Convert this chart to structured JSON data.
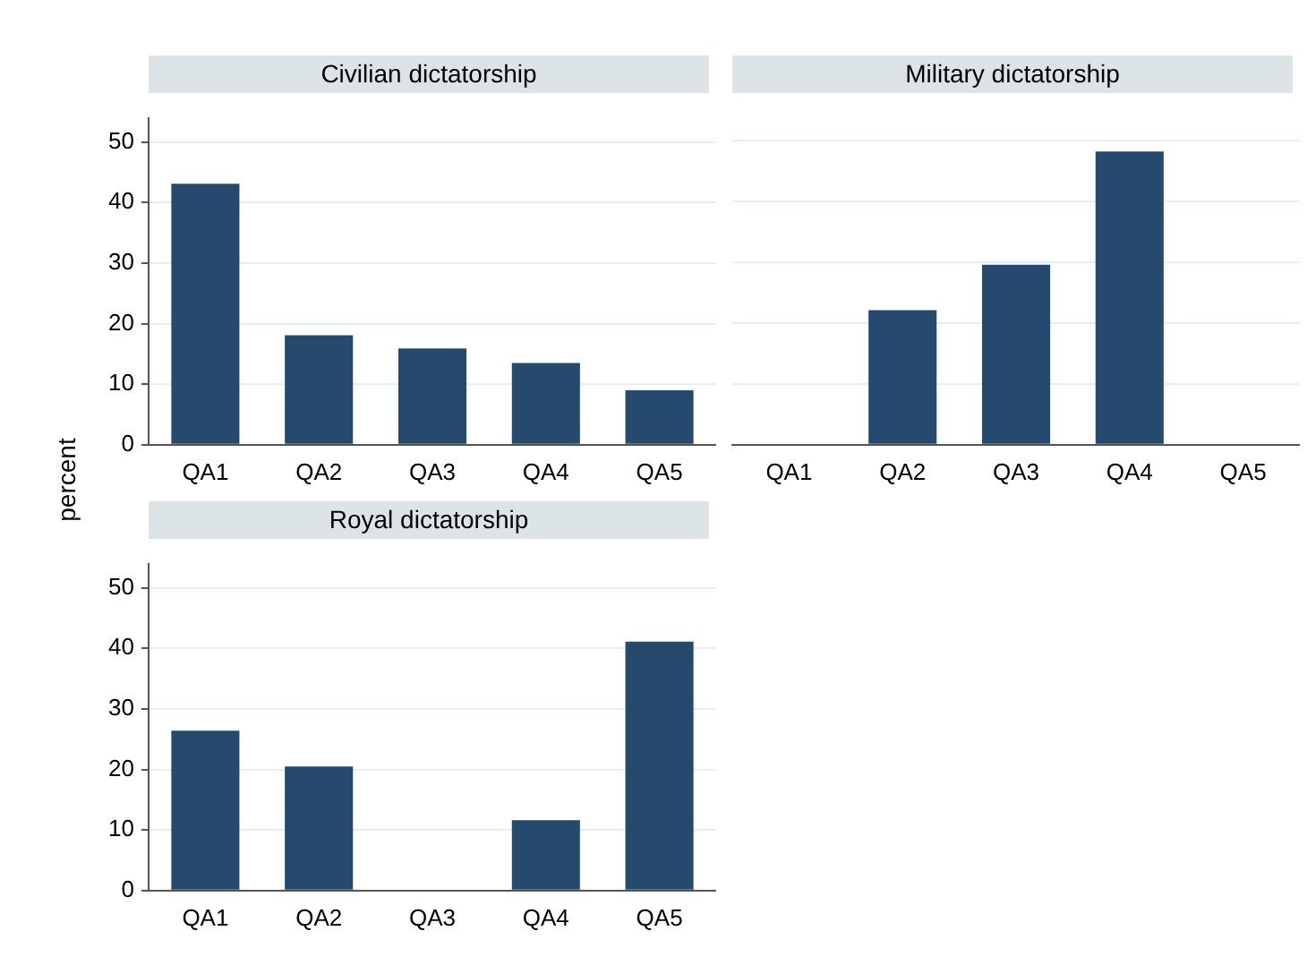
{
  "chart_data": [
    {
      "type": "bar",
      "title": "Civilian dictatorship",
      "ylabel": "percent",
      "categories": [
        "QA1",
        "QA2",
        "QA3",
        "QA4",
        "QA5"
      ],
      "values": [
        43.1,
        18.1,
        15.9,
        13.5,
        9.0
      ],
      "color": "#264a6e",
      "ylim": [
        0,
        54
      ],
      "yticks": [
        0,
        10,
        20,
        30,
        40,
        50
      ],
      "grid": "y"
    },
    {
      "type": "bar",
      "title": "Military dictatorship",
      "categories": [
        "QA1",
        "QA2",
        "QA3",
        "QA4",
        "QA5"
      ],
      "values": [
        0,
        22.1,
        29.6,
        48.2,
        0
      ],
      "color": "#264a6e",
      "ylim": [
        0,
        50
      ],
      "yticks": [
        0,
        10,
        20,
        30,
        40,
        50
      ],
      "grid": "y",
      "tick_labels": "x"
    },
    {
      "type": "bar",
      "title": "Royal dictatorship",
      "categories": [
        "QA1",
        "QA2",
        "QA3",
        "QA4",
        "QA5"
      ],
      "values": [
        26.4,
        20.5,
        0,
        11.6,
        41.1
      ],
      "color": "#264a6e",
      "ylim": [
        0,
        54
      ],
      "yticks": [
        0,
        10,
        20,
        30,
        40,
        50
      ],
      "grid": "y"
    }
  ]
}
